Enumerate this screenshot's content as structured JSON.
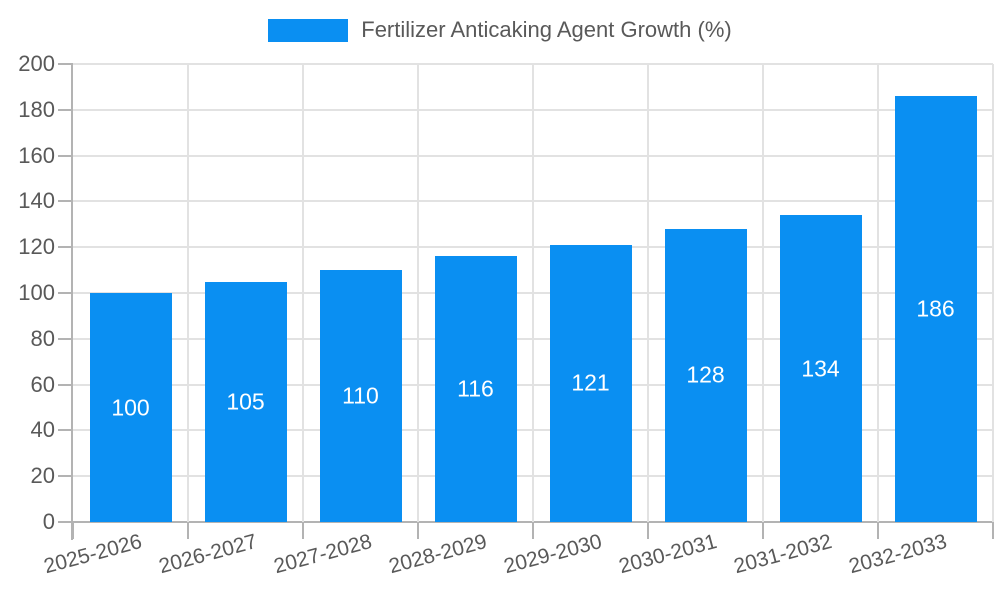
{
  "colors": {
    "bar": "#0a8ff2",
    "grid": "#e2e2e2",
    "axis": "#b3b3b3",
    "text": "#595959",
    "value_label": "#ffffff",
    "background": "#ffffff"
  },
  "chart_data": {
    "type": "bar",
    "title": "Fertilizer Anticaking Agent Growth (%)",
    "legend": [
      "Fertilizer Anticaking Agent Growth (%)"
    ],
    "legend_position": "top-center",
    "categories": [
      "2025-2026",
      "2026-2027",
      "2027-2028",
      "2028-2029",
      "2029-2030",
      "2030-2031",
      "2031-2032",
      "2032-2033"
    ],
    "values": [
      100,
      105,
      110,
      116,
      121,
      128,
      134,
      186
    ],
    "value_label_position": "inside-middle",
    "xlabel": "",
    "ylabel": "",
    "ylim": [
      0,
      200
    ],
    "yticks": [
      0,
      20,
      40,
      60,
      80,
      100,
      120,
      140,
      160,
      180,
      200
    ],
    "grid": true,
    "x_tick_label_rotation_deg": -15
  }
}
